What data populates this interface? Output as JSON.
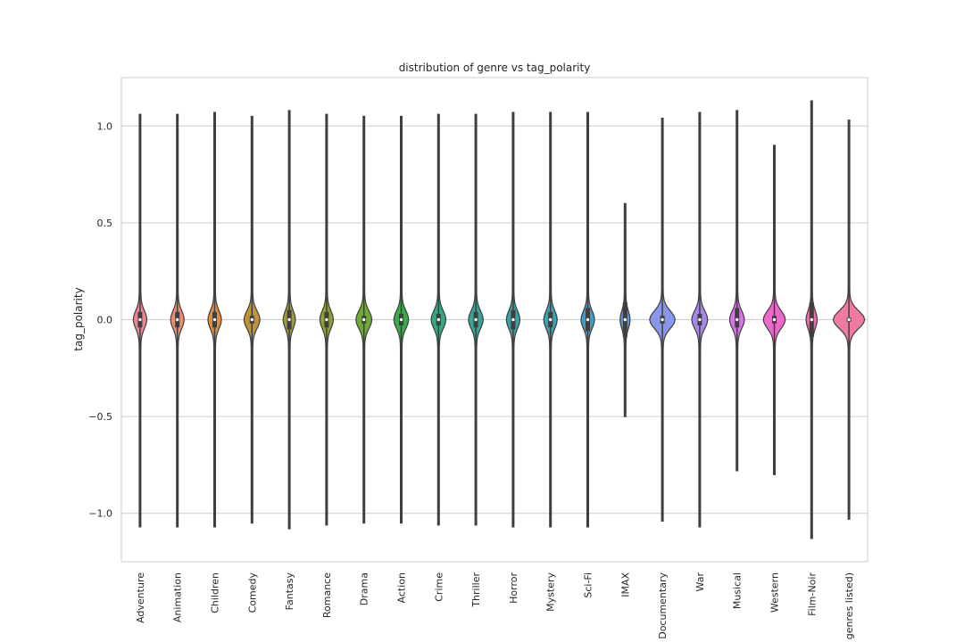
{
  "chart_data": {
    "type": "violin",
    "title": "distribution of genre vs tag_polarity",
    "xlabel": "",
    "ylabel": "tag_polarity",
    "ylim": [
      -1.25,
      1.25
    ],
    "yticks": [
      {
        "value": 1.0,
        "label": "1.0"
      },
      {
        "value": 0.5,
        "label": "0.5"
      },
      {
        "value": 0.0,
        "label": "0.0"
      },
      {
        "value": -0.5,
        "label": "−0.5"
      },
      {
        "value": -1.0,
        "label": "−1.0"
      }
    ],
    "grid": true,
    "categories": [
      "Adventure",
      "Animation",
      "Children",
      "Comedy",
      "Fantasy",
      "Romance",
      "Drama",
      "Action",
      "Crime",
      "Thriller",
      "Horror",
      "Mystery",
      "Sci-Fi",
      "IMAX",
      "Documentary",
      "War",
      "Musical",
      "Western",
      "Film-Noir",
      "(no genres listed)"
    ],
    "colors": [
      "#f0848e",
      "#f08b6d",
      "#e08e3c",
      "#c0923a",
      "#a29a36",
      "#90a034",
      "#6fa939",
      "#3ea84c",
      "#35a882",
      "#36a596",
      "#38a2a5",
      "#3aa0b3",
      "#3d9dc9",
      "#5b95dc",
      "#8896ec",
      "#a986e8",
      "#d476e3",
      "#ec69cc",
      "#ee6db0",
      "#ef7ba4"
    ],
    "series": [
      {
        "name": "Adventure",
        "min": -1.07,
        "max": 1.06,
        "q1": -0.04,
        "median": 0.0,
        "q3": 0.04,
        "halfwidth": 0.1
      },
      {
        "name": "Animation",
        "min": -1.07,
        "max": 1.06,
        "q1": -0.04,
        "median": 0.0,
        "q3": 0.04,
        "halfwidth": 0.1
      },
      {
        "name": "Children",
        "min": -1.07,
        "max": 1.07,
        "q1": -0.04,
        "median": 0.0,
        "q3": 0.04,
        "halfwidth": 0.1
      },
      {
        "name": "Comedy",
        "min": -1.05,
        "max": 1.05,
        "q1": -0.02,
        "median": 0.0,
        "q3": 0.02,
        "halfwidth": 0.12
      },
      {
        "name": "Fantasy",
        "min": -1.08,
        "max": 1.08,
        "q1": -0.05,
        "median": 0.0,
        "q3": 0.05,
        "halfwidth": 0.09
      },
      {
        "name": "Romance",
        "min": -1.06,
        "max": 1.06,
        "q1": -0.04,
        "median": 0.0,
        "q3": 0.04,
        "halfwidth": 0.1
      },
      {
        "name": "Drama",
        "min": -1.05,
        "max": 1.05,
        "q1": -0.02,
        "median": 0.0,
        "q3": 0.02,
        "halfwidth": 0.12
      },
      {
        "name": "Action",
        "min": -1.05,
        "max": 1.05,
        "q1": -0.03,
        "median": 0.0,
        "q3": 0.03,
        "halfwidth": 0.11
      },
      {
        "name": "Crime",
        "min": -1.06,
        "max": 1.06,
        "q1": -0.03,
        "median": 0.0,
        "q3": 0.03,
        "halfwidth": 0.11
      },
      {
        "name": "Thriller",
        "min": -1.06,
        "max": 1.06,
        "q1": -0.04,
        "median": 0.0,
        "q3": 0.04,
        "halfwidth": 0.11
      },
      {
        "name": "Horror",
        "min": -1.07,
        "max": 1.07,
        "q1": -0.05,
        "median": 0.0,
        "q3": 0.05,
        "halfwidth": 0.1
      },
      {
        "name": "Mystery",
        "min": -1.07,
        "max": 1.07,
        "q1": -0.04,
        "median": 0.0,
        "q3": 0.04,
        "halfwidth": 0.1
      },
      {
        "name": "Sci-Fi",
        "min": -1.07,
        "max": 1.07,
        "q1": -0.06,
        "median": 0.0,
        "q3": 0.06,
        "halfwidth": 0.1
      },
      {
        "name": "IMAX",
        "min": -0.5,
        "max": 0.6,
        "q1": -0.09,
        "median": 0.0,
        "q3": 0.09,
        "halfwidth": 0.07
      },
      {
        "name": "Documentary",
        "min": -1.04,
        "max": 1.04,
        "q1": -0.02,
        "median": 0.0,
        "q3": 0.02,
        "halfwidth": 0.2
      },
      {
        "name": "War",
        "min": -1.07,
        "max": 1.07,
        "q1": -0.03,
        "median": 0.0,
        "q3": 0.03,
        "halfwidth": 0.12
      },
      {
        "name": "Musical",
        "min": -0.78,
        "max": 1.08,
        "q1": -0.04,
        "median": 0.0,
        "q3": 0.06,
        "halfwidth": 0.11
      },
      {
        "name": "Western",
        "min": -0.8,
        "max": 0.9,
        "q1": -0.02,
        "median": 0.0,
        "q3": 0.02,
        "halfwidth": 0.17
      },
      {
        "name": "Film-Noir",
        "min": -1.13,
        "max": 1.13,
        "q1": -0.09,
        "median": 0.0,
        "q3": 0.09,
        "halfwidth": 0.08
      },
      {
        "name": "(no genres listed)",
        "min": -1.03,
        "max": 1.03,
        "q1": -0.01,
        "median": 0.0,
        "q3": 0.01,
        "halfwidth": 0.25
      }
    ]
  }
}
